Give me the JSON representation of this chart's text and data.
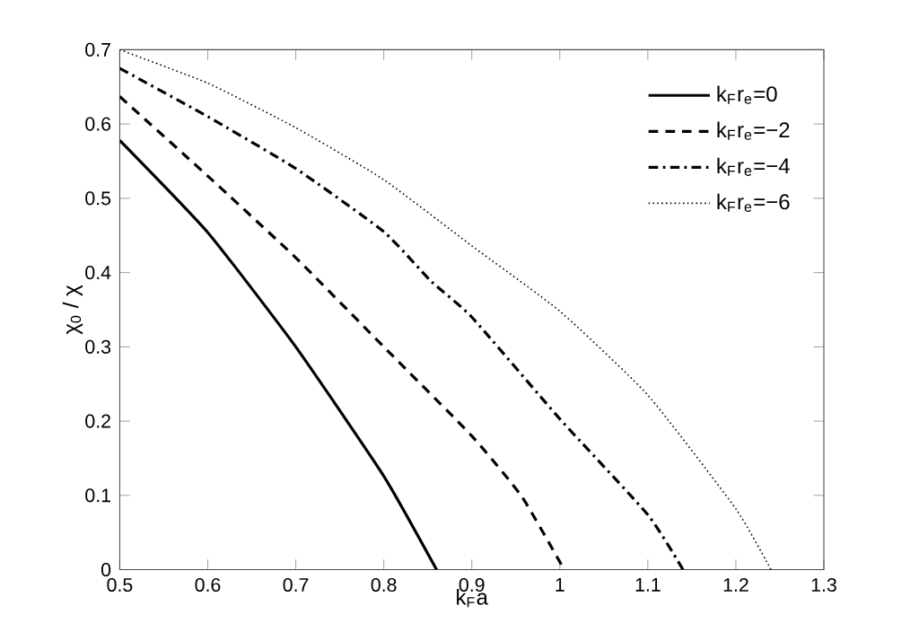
{
  "chart_data": {
    "type": "line",
    "xlabel": "k$_{F}$a",
    "ylabel": "χ$_{0}$ / χ",
    "xlim": [
      0.5,
      1.3
    ],
    "ylim": [
      0,
      0.7
    ],
    "xticks": [
      0.5,
      0.6,
      0.7,
      0.8,
      0.9,
      1,
      1.1,
      1.2,
      1.3
    ],
    "yticks": [
      0,
      0.1,
      0.2,
      0.3,
      0.4,
      0.5,
      0.6,
      0.7
    ],
    "legend": "top right",
    "grid": false,
    "marker": "none",
    "series": [
      {
        "name": "k$_{F}$r$_{e}$=0",
        "color": "#000000",
        "line_style": "solid",
        "x": [
          0.5,
          0.6,
          0.7,
          0.8,
          0.86
        ],
        "values": [
          0.578,
          0.454,
          0.3,
          0.126,
          0
        ]
      },
      {
        "name": "k$_{F}$r$_{e}$=−2",
        "color": "#000000",
        "line_style": "dashed",
        "x": [
          0.5,
          0.6,
          0.7,
          0.8,
          0.9,
          0.957,
          1.005
        ],
        "values": [
          0.637,
          0.53,
          0.42,
          0.3,
          0.18,
          0.098,
          0
        ]
      },
      {
        "name": "k$_{F}$r$_{e}$=−4",
        "color": "#000000",
        "line_style": "dashdot",
        "x": [
          0.5,
          0.6,
          0.7,
          0.8,
          0.854,
          0.9,
          1.0,
          1.1,
          1.14
        ],
        "values": [
          0.675,
          0.61,
          0.54,
          0.455,
          0.388,
          0.34,
          0.203,
          0.074,
          0
        ]
      },
      {
        "name": "k$_{F}$r$_{e}$=−6",
        "color": "#000000",
        "line_style": "dotted",
        "x": [
          0.5,
          0.6,
          0.7,
          0.8,
          0.9,
          1.0,
          1.1,
          1.2,
          1.24
        ],
        "values": [
          0.7,
          0.655,
          0.595,
          0.525,
          0.436,
          0.348,
          0.235,
          0.082,
          0
        ]
      }
    ]
  }
}
